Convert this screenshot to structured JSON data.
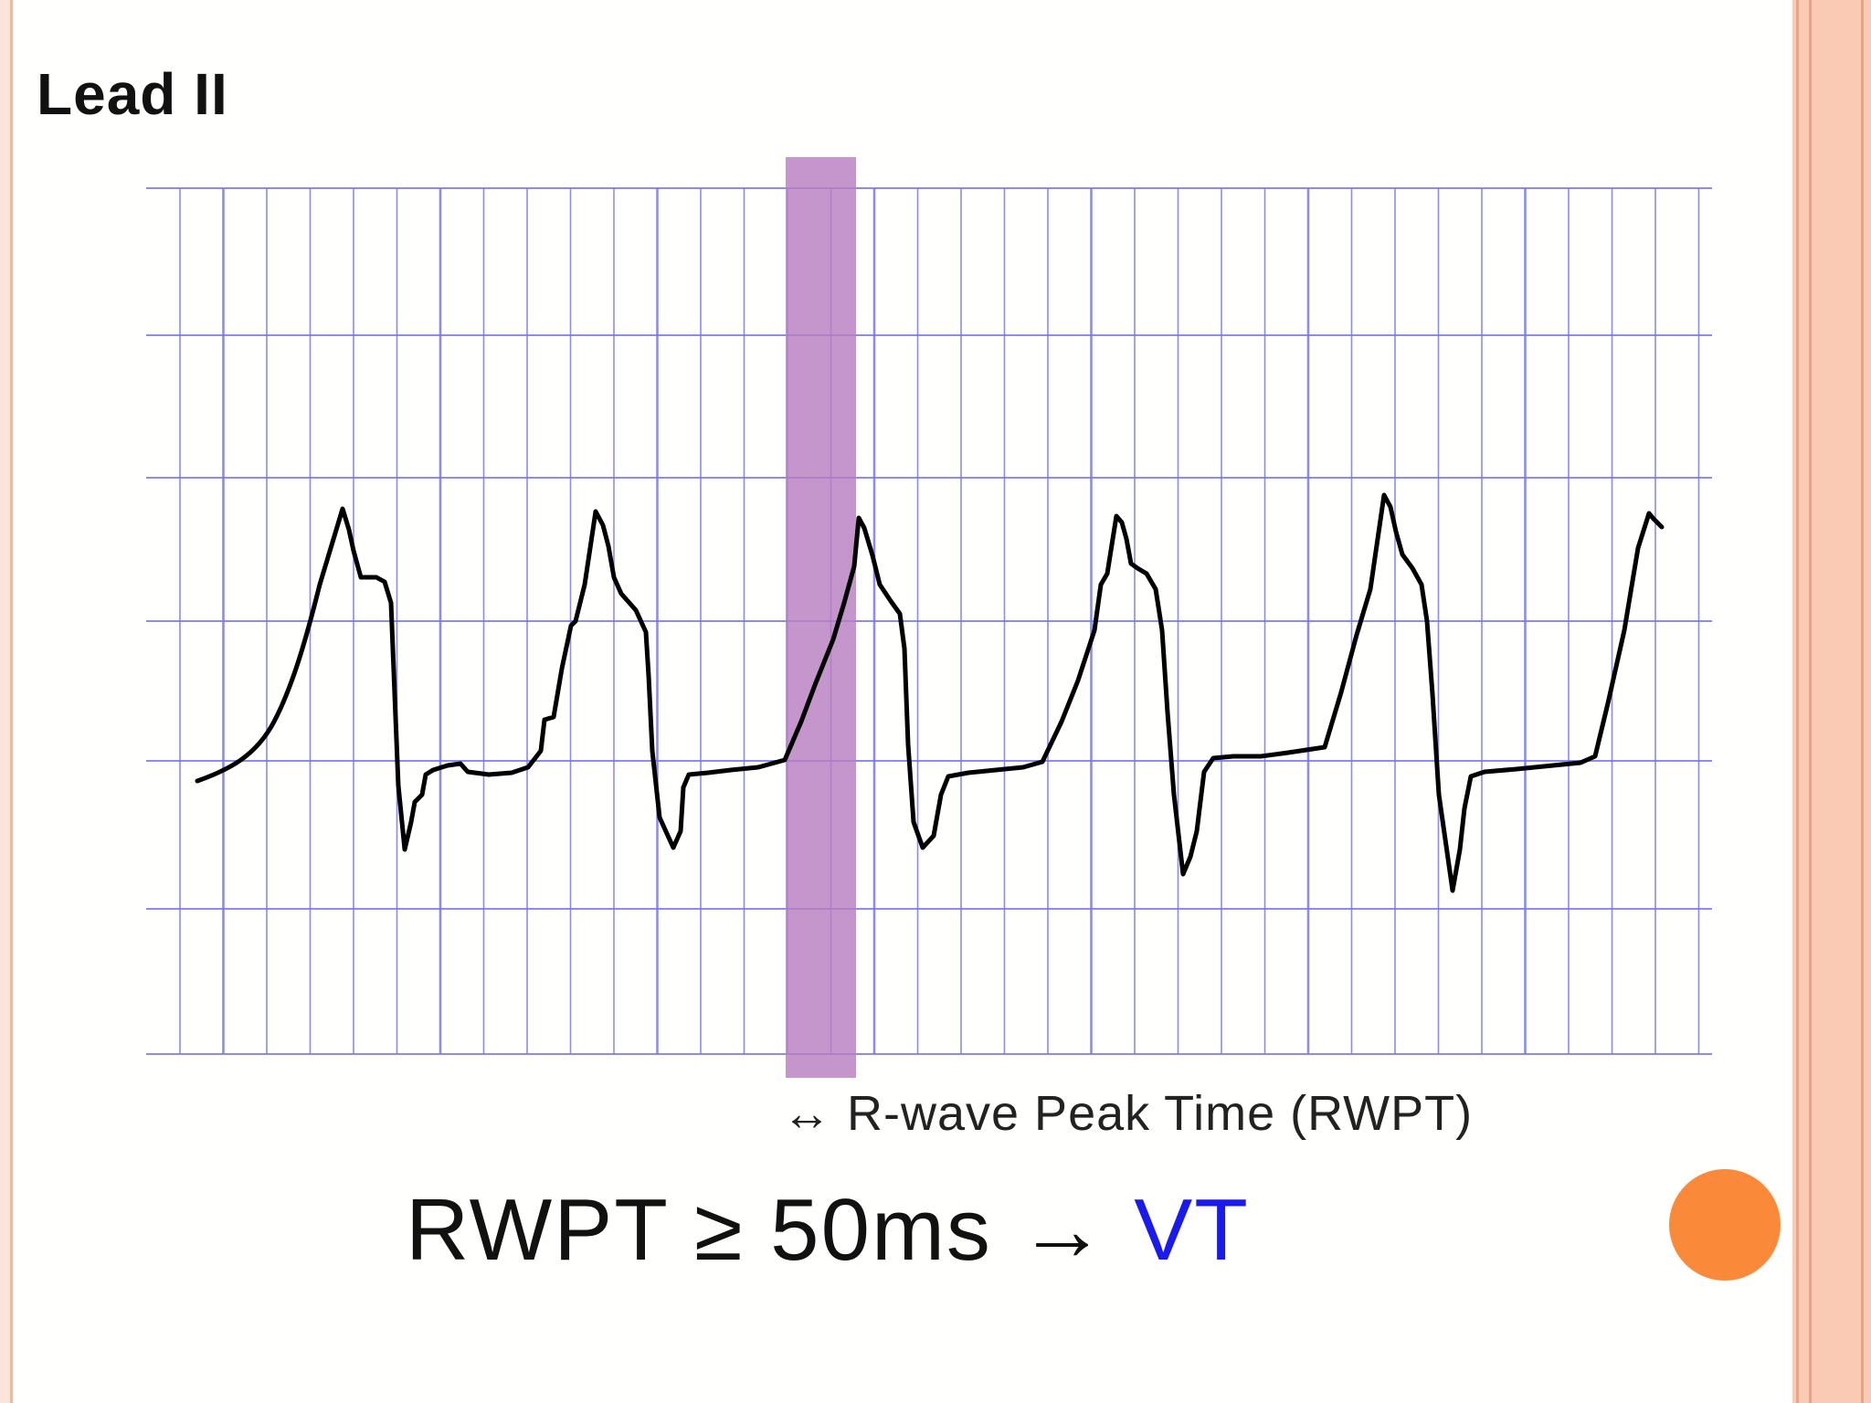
{
  "slide": {
    "title": "Lead II",
    "rwpt_legend": "↔ R-wave Peak Time (RWPT)",
    "formula": {
      "prefix": "RWPT ≥ 50ms → ",
      "result": "VT"
    }
  },
  "colors": {
    "grid": "#7777ee",
    "highlight": "#b77fc0",
    "trace": "#000000",
    "result_text": "#1a1aee",
    "accent_dot": "#fa8a3a",
    "border": "#fbcab4"
  }
}
